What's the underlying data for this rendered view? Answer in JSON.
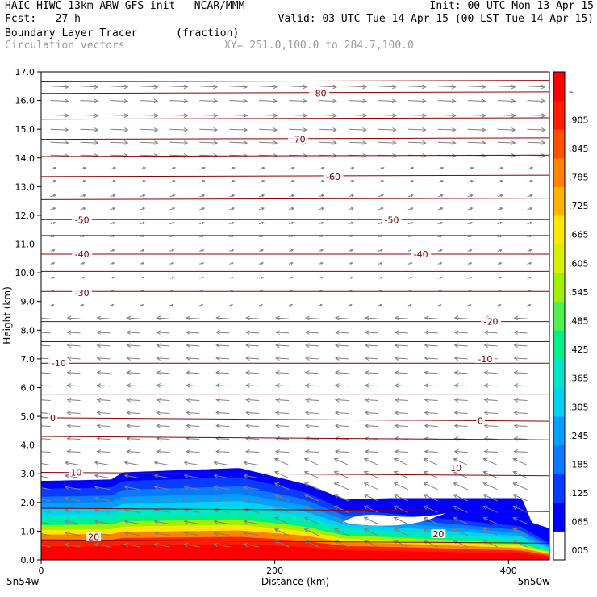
{
  "header": {
    "line1_left": "HAIC-HIWC 13km ARW-GFS init   NCAR/MMM",
    "line1_right": "Init: 00 UTC Mon 13 Apr 15",
    "line2_left": "Fcst:   27 h",
    "line2_right": "Valid: 03 UTC Tue 14 Apr 15 (00 LST Tue 14 Apr 15)",
    "line3_left": "Boundary Layer Tracer",
    "line3_mid": "(fraction)",
    "line4_left": "Circulation vectors",
    "line4_mid": "XY= 251.0,100.0 to 284.7,100.0"
  },
  "axes": {
    "ylabel": "Height (km)",
    "xlabel": "Distance (km)",
    "y_ticks": [
      "0.0",
      "1.0",
      "2.0",
      "3.0",
      "4.0",
      "5.0",
      "6.0",
      "7.0",
      "8.0",
      "9.0",
      "10.0",
      "11.0",
      "12.0",
      "13.0",
      "14.0",
      "15.0",
      "16.0",
      "17.0"
    ],
    "x_ticks": [
      "0",
      "200",
      "400"
    ],
    "x_left_corner": "5n54w",
    "x_right_corner": "5n50w"
  },
  "colorbar": {
    "labels": [
      ".005",
      ".065",
      ".125",
      ".185",
      ".245",
      ".305",
      ".365",
      ".425",
      ".485",
      ".545",
      ".605",
      ".665",
      ".725",
      ".785",
      ".845",
      ".905",
      "–"
    ],
    "colors": [
      "#ffffff",
      "#0000ff",
      "#0a3cff",
      "#0a78ff",
      "#00a0ff",
      "#00d2f0",
      "#00e6c8",
      "#00f08c",
      "#50f050",
      "#a0f000",
      "#d8f000",
      "#ffe600",
      "#ffb400",
      "#ff8200",
      "#ff5000",
      "#ff1e00",
      "#ff0000"
    ]
  },
  "chart_data": {
    "type": "heatmap",
    "title": "Boundary Layer Tracer",
    "units": "(fraction)",
    "overlay": "Circulation vectors",
    "xlabel": "Distance (km)",
    "ylabel": "Height (km)",
    "xlim": [
      0,
      435
    ],
    "ylim": [
      0,
      17
    ],
    "x_tick_values": [
      0,
      200,
      400
    ],
    "y_tick_values": [
      0,
      1,
      2,
      3,
      4,
      5,
      6,
      7,
      8,
      9,
      10,
      11,
      12,
      13,
      14,
      15,
      16,
      17
    ],
    "tracer_top_km": [
      {
        "x": 0,
        "z": 2.75
      },
      {
        "x": 60,
        "z": 2.8
      },
      {
        "x": 70,
        "z": 3.05
      },
      {
        "x": 170,
        "z": 3.2
      },
      {
        "x": 230,
        "z": 2.6
      },
      {
        "x": 260,
        "z": 2.1
      },
      {
        "x": 300,
        "z": 2.15
      },
      {
        "x": 410,
        "z": 2.15
      },
      {
        "x": 435,
        "z": 1.2
      }
    ],
    "temperature_contours": [
      {
        "label": "20",
        "x": 45,
        "z": 0.8
      },
      {
        "label": "20",
        "x": 340,
        "z": 0.9
      },
      {
        "label": "10",
        "x": 30,
        "z": 3.05
      },
      {
        "label": "10",
        "x": 355,
        "z": 3.2
      },
      {
        "label": "0",
        "x": 10,
        "z": 4.95
      },
      {
        "label": "0",
        "x": 376,
        "z": 4.85
      },
      {
        "label": "-10",
        "x": 15,
        "z": 6.85
      },
      {
        "label": "-10",
        "x": 380,
        "z": 7.0
      },
      {
        "label": "-20",
        "x": 385,
        "z": 8.3
      },
      {
        "label": "-30",
        "x": 35,
        "z": 9.3
      },
      {
        "label": "-40",
        "x": 35,
        "z": 10.65
      },
      {
        "label": "-40",
        "x": 325,
        "z": 10.65
      },
      {
        "label": "-50",
        "x": 35,
        "z": 11.85
      },
      {
        "label": "-50",
        "x": 300,
        "z": 11.85
      },
      {
        "label": "-60",
        "x": 250,
        "z": 13.35
      },
      {
        "label": "-70",
        "x": 220,
        "z": 14.65
      },
      {
        "label": "-80",
        "x": 238,
        "z": 16.25
      }
    ]
  }
}
